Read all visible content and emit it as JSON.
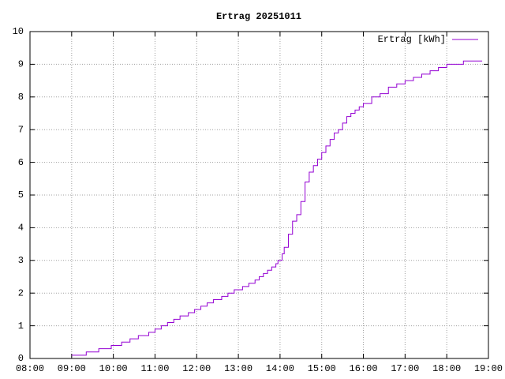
{
  "chart_data": {
    "type": "line",
    "steps": true,
    "title": "Ertrag 20251011",
    "x": [
      9.0,
      9.35,
      9.65,
      9.95,
      10.2,
      10.4,
      10.6,
      10.85,
      11.0,
      11.15,
      11.3,
      11.45,
      11.6,
      11.8,
      11.95,
      12.1,
      12.25,
      12.4,
      12.6,
      12.75,
      12.9,
      13.1,
      13.25,
      13.4,
      13.5,
      13.6,
      13.7,
      13.8,
      13.9,
      13.95,
      14.05,
      14.1,
      14.2,
      14.3,
      14.4,
      14.5,
      14.6,
      14.7,
      14.8,
      14.9,
      15.0,
      15.1,
      15.2,
      15.3,
      15.4,
      15.5,
      15.6,
      15.7,
      15.8,
      15.9,
      16.0,
      16.2,
      16.4,
      16.6,
      16.8,
      17.0,
      17.2,
      17.4,
      17.6,
      17.8,
      18.0,
      18.4,
      18.85
    ],
    "series": [
      {
        "name": "Ertrag [kWh]",
        "color": "#9400d3",
        "values": [
          0.1,
          0.2,
          0.3,
          0.4,
          0.5,
          0.6,
          0.7,
          0.8,
          0.9,
          1.0,
          1.1,
          1.2,
          1.3,
          1.4,
          1.5,
          1.6,
          1.7,
          1.8,
          1.9,
          2.0,
          2.1,
          2.2,
          2.3,
          2.4,
          2.5,
          2.6,
          2.7,
          2.8,
          2.9,
          3.0,
          3.2,
          3.4,
          3.8,
          4.2,
          4.4,
          4.8,
          5.4,
          5.7,
          5.9,
          6.1,
          6.3,
          6.5,
          6.7,
          6.9,
          7.0,
          7.2,
          7.4,
          7.5,
          7.6,
          7.7,
          7.8,
          8.0,
          8.1,
          8.3,
          8.4,
          8.5,
          8.6,
          8.7,
          8.8,
          8.9,
          9.0,
          9.1,
          9.1
        ]
      }
    ],
    "xlim": [
      8,
      19
    ],
    "xticks": [
      {
        "value": 8,
        "label": "08:00"
      },
      {
        "value": 9,
        "label": "09:00"
      },
      {
        "value": 10,
        "label": "10:00"
      },
      {
        "value": 11,
        "label": "11:00"
      },
      {
        "value": 12,
        "label": "12:00"
      },
      {
        "value": 13,
        "label": "13:00"
      },
      {
        "value": 14,
        "label": "14:00"
      },
      {
        "value": 15,
        "label": "15:00"
      },
      {
        "value": 16,
        "label": "16:00"
      },
      {
        "value": 17,
        "label": "17:00"
      },
      {
        "value": 18,
        "label": "18:00"
      },
      {
        "value": 19,
        "label": "19:00"
      }
    ],
    "ylim": [
      0,
      10
    ],
    "yticks": [
      0,
      1,
      2,
      3,
      4,
      5,
      6,
      7,
      8,
      9,
      10
    ],
    "grid": true,
    "legend": "top-right"
  }
}
